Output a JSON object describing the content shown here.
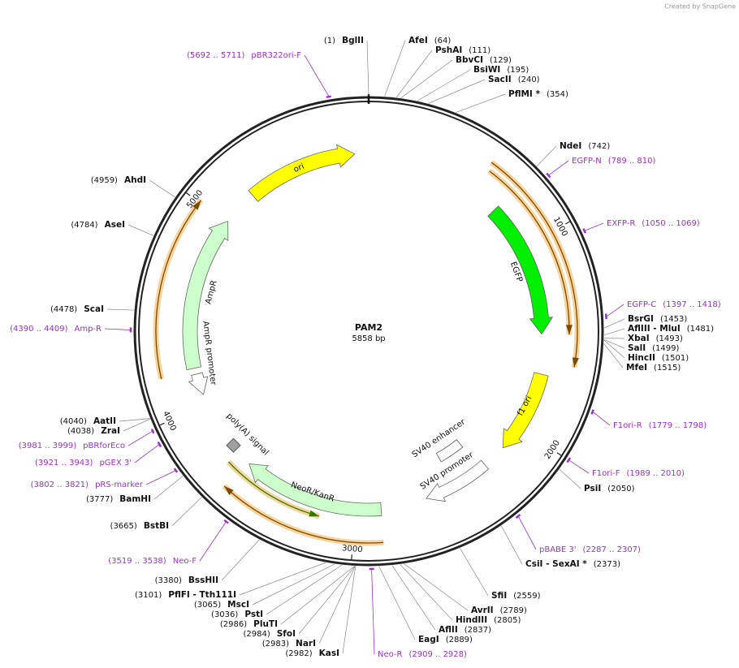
{
  "header": {
    "credit": "Created by SnapGene"
  },
  "plasmid": {
    "name": "PAM2",
    "length": "5858 bp"
  },
  "ticks": [
    1000,
    2000,
    3000,
    4000,
    5000
  ],
  "features": [
    "ori",
    "EGFP",
    "f1 ori",
    "SV40 enhancer",
    "SV40 promoter",
    "NeoR/KanR",
    "poly(A) signal",
    "AmpR",
    "AmpR promoter"
  ],
  "sites": [
    {
      "name": "BglII",
      "pos": "(1)"
    },
    {
      "name": "AfeI",
      "pos": "(64)"
    },
    {
      "name": "PshAI",
      "pos": "(111)"
    },
    {
      "name": "BbvCI",
      "pos": "(129)"
    },
    {
      "name": "BsiWI",
      "pos": "(195)"
    },
    {
      "name": "SacII",
      "pos": "(240)"
    },
    {
      "name": "PflMI *",
      "pos": "(354)"
    },
    {
      "name": "NdeI",
      "pos": "(742)"
    },
    {
      "name": "BsrGI",
      "pos": "(1453)"
    },
    {
      "name": "AflIII  - MluI",
      "pos": "(1481)"
    },
    {
      "name": "XbaI",
      "pos": "(1493)"
    },
    {
      "name": "SalI",
      "pos": "(1499)"
    },
    {
      "name": "HincII",
      "pos": "(1501)"
    },
    {
      "name": "MfeI",
      "pos": "(1515)"
    },
    {
      "name": "PsiI",
      "pos": "(2050)"
    },
    {
      "name": "CsiI  - SexAI *",
      "pos": "(2373)"
    },
    {
      "name": "SfiI",
      "pos": "(2559)"
    },
    {
      "name": "AvrII",
      "pos": "(2789)"
    },
    {
      "name": "HindIII",
      "pos": "(2805)"
    },
    {
      "name": "AflII",
      "pos": "(2837)"
    },
    {
      "name": "EagI",
      "pos": "(2889)"
    },
    {
      "name": "KasI",
      "pos": "(2982)"
    },
    {
      "name": "NarI",
      "pos": "(2983)"
    },
    {
      "name": "SfoI",
      "pos": "(2984)"
    },
    {
      "name": "PluTI",
      "pos": "(2986)"
    },
    {
      "name": "PstI",
      "pos": "(3036)"
    },
    {
      "name": "MscI",
      "pos": "(3065)"
    },
    {
      "name": "PflFI  - Tth111I",
      "pos": "(3101)"
    },
    {
      "name": "BssHII",
      "pos": "(3380)"
    },
    {
      "name": "BstBI",
      "pos": "(3665)"
    },
    {
      "name": "BamHI",
      "pos": "(3777)"
    },
    {
      "name": "ZraI",
      "pos": "(4038)"
    },
    {
      "name": "AatII",
      "pos": "(4040)"
    },
    {
      "name": "ScaI",
      "pos": "(4478)"
    },
    {
      "name": "AseI",
      "pos": "(4784)"
    },
    {
      "name": "AhdI",
      "pos": "(4959)"
    }
  ],
  "primers": [
    {
      "name": "EGFP-N",
      "range": "(789 .. 810)"
    },
    {
      "name": "EXFP-R",
      "range": "(1050 .. 1069)"
    },
    {
      "name": "EGFP-C",
      "range": "(1397 .. 1418)"
    },
    {
      "name": "F1ori-R",
      "range": "(1779 .. 1798)"
    },
    {
      "name": "F1ori-F",
      "range": "(1989 .. 2010)"
    },
    {
      "name": "pBABE 3'",
      "range": "(2287 .. 2307)"
    },
    {
      "name": "Neo-R",
      "range": "(2909 .. 2928)"
    },
    {
      "name": "Neo-F",
      "range": "(3519 .. 3538)"
    },
    {
      "name": "pRS-marker",
      "range": "(3802 .. 3821)"
    },
    {
      "name": "pGEX 3'",
      "range": "(3921 .. 3943)"
    },
    {
      "name": "pBRforEco",
      "range": "(3981 .. 3999)"
    },
    {
      "name": "Amp-R",
      "range": "(4390 .. 4409)"
    },
    {
      "name": "pBR322ori-F",
      "range": "(5692 .. 5711)"
    }
  ]
}
